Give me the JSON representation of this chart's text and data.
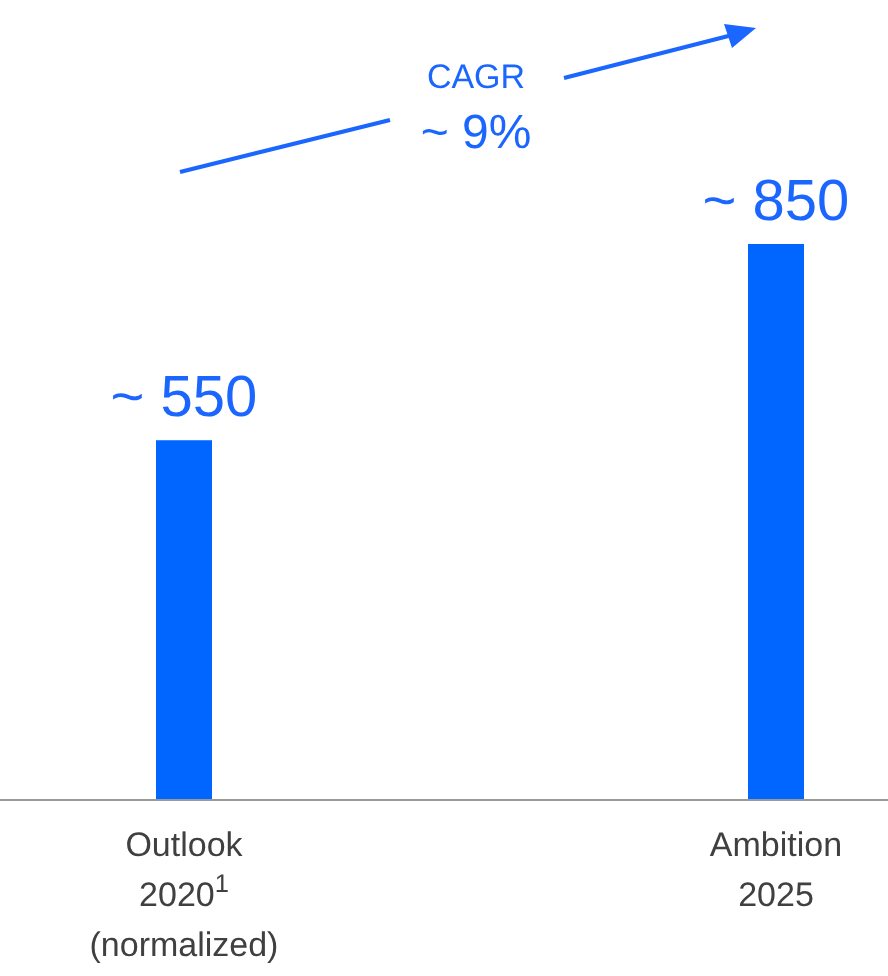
{
  "chart_data": {
    "type": "bar",
    "categories": [
      "Outlook\n2020$^{1}$\n(normalized)",
      "Ambition\n2025"
    ],
    "values": [
      550,
      850
    ],
    "value_labels": [
      "~ 550",
      "~ 850"
    ],
    "color": "#0066ff",
    "annotations": [
      "CAGR",
      "~ 9%"
    ]
  }
}
